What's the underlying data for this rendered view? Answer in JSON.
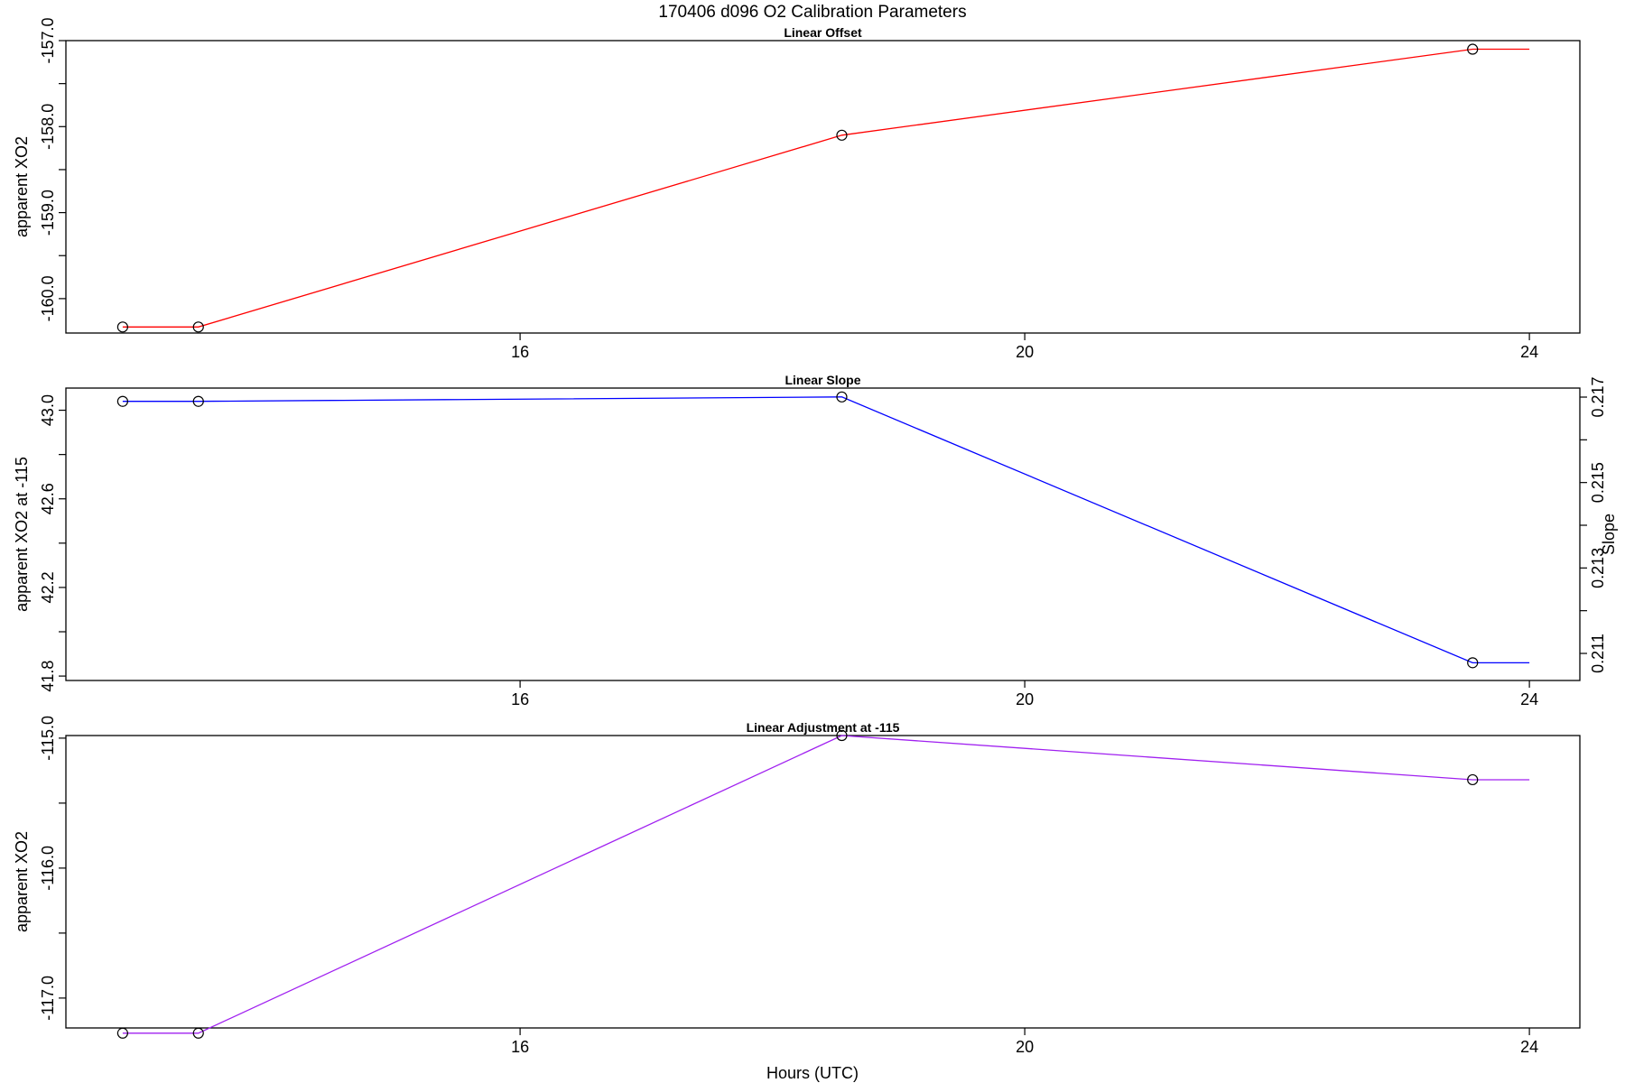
{
  "figure_title": "170406   d096   O2 Calibration Parameters",
  "x_axis_label": "Hours (UTC)",
  "chart_data": [
    {
      "type": "line",
      "title": "Linear Offset",
      "ylabel": "apparent XO2",
      "xlim": [
        12.4,
        24.4
      ],
      "ylim": [
        -160.4,
        -157.0
      ],
      "x_ticks": [
        16,
        20,
        24
      ],
      "y_ticks": [
        -157.0,
        -157.5,
        -158.0,
        -158.5,
        -159.0,
        -159.5,
        -160.0
      ],
      "y_tick_labels": [
        "-157.0",
        "",
        "-158.0",
        "",
        "-159.0",
        "",
        "-160.0"
      ],
      "color": "#ff0000",
      "series": [
        {
          "x": [
            12.85,
            13.45,
            18.55,
            23.55,
            24.0
          ],
          "y": [
            -160.33,
            -160.33,
            -158.1,
            -157.1,
            -157.1
          ],
          "markers": [
            true,
            true,
            true,
            true,
            false
          ]
        }
      ]
    },
    {
      "type": "line",
      "title": "Linear Slope",
      "ylabel": "apparent XO2 at -115",
      "y2label": "Slope",
      "xlim": [
        12.4,
        24.4
      ],
      "ylim": [
        41.78,
        43.1
      ],
      "x_ticks": [
        16,
        20,
        24
      ],
      "y_ticks": [
        43.0,
        42.8,
        42.6,
        42.4,
        42.2,
        42.0,
        41.8
      ],
      "y_tick_labels": [
        "43.0",
        "",
        "42.6",
        "",
        "42.2",
        "",
        "41.8"
      ],
      "y2_ticks": [
        0.217,
        0.216,
        0.215,
        0.214,
        0.213,
        0.212,
        0.211
      ],
      "y2_tick_labels": [
        "0.217",
        "",
        "0.215",
        "",
        "0.213",
        "",
        "0.211"
      ],
      "color": "#0000ff",
      "series": [
        {
          "x": [
            12.85,
            13.45,
            18.55,
            23.55,
            24.0
          ],
          "y": [
            43.04,
            43.04,
            43.06,
            41.86,
            41.86
          ],
          "markers": [
            true,
            true,
            true,
            true,
            false
          ]
        }
      ]
    },
    {
      "type": "line",
      "title": "Linear Adjustment at -115",
      "ylabel": "apparent XO2",
      "xlim": [
        12.4,
        24.4
      ],
      "ylim": [
        -117.23,
        -114.98
      ],
      "x_ticks": [
        16,
        20,
        24
      ],
      "y_ticks": [
        -115.0,
        -115.5,
        -116.0,
        -116.5,
        -117.0
      ],
      "y_tick_labels": [
        "-115.0",
        "",
        "-116.0",
        "",
        "-117.0"
      ],
      "color": "#a020f0",
      "series": [
        {
          "x": [
            12.85,
            13.45,
            18.55,
            23.55,
            24.0
          ],
          "y": [
            -117.27,
            -117.27,
            -114.98,
            -115.32,
            -115.32
          ],
          "markers": [
            true,
            true,
            true,
            true,
            false
          ]
        }
      ]
    }
  ]
}
